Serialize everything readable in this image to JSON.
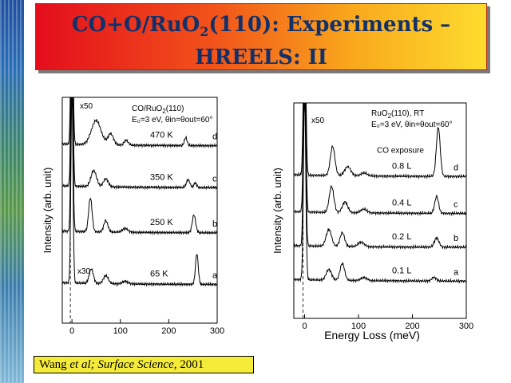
{
  "slide": {
    "title_formula": {
      "prefix": "CO+O/RuO",
      "sub": "2",
      "suffix": "(110): Experiments –"
    },
    "title_line2": "HREELS: II"
  },
  "citation": {
    "authors": "Wang",
    "etal": "et al;",
    "journal": "Surface Science,",
    "year": "2001"
  },
  "colors": {
    "title_text": "#12306a",
    "title_bg_left": "#e30d1c",
    "title_bg_right": "#fddc2e",
    "citation_bg": "#f5ec3a"
  },
  "chart_data": [
    {
      "type": "line",
      "title": "",
      "legend_text": {
        "system": "CO/RuO",
        "system_sub": "2",
        "system_tail": "(110)",
        "conditions": "E₀=3 eV, θin=θout=60°"
      },
      "xlabel": "",
      "ylabel": "Intensity (arb. unit)",
      "xlim": [
        -20,
        300
      ],
      "xticks": [
        0,
        100,
        200,
        300
      ],
      "multiplier_labels": [
        "x50",
        "x30"
      ],
      "series": [
        {
          "name": "65 K",
          "letter": "a",
          "baseline": 1.0,
          "peaks": [
            [
              0,
              6.0,
              3
            ],
            [
              40,
              0.45,
              6
            ],
            [
              70,
              0.25,
              7
            ],
            [
              110,
              0.08,
              8
            ],
            [
              258,
              0.95,
              4
            ]
          ]
        },
        {
          "name": "250 K",
          "letter": "b",
          "baseline": 2.6,
          "peaks": [
            [
              0,
              6.0,
              3
            ],
            [
              38,
              1.05,
              5
            ],
            [
              70,
              0.35,
              6
            ],
            [
              110,
              0.12,
              8
            ],
            [
              252,
              0.55,
              5
            ]
          ]
        },
        {
          "name": "350 K",
          "letter": "c",
          "baseline": 4.0,
          "peaks": [
            [
              0,
              6.0,
              3
            ],
            [
              45,
              0.5,
              8
            ],
            [
              70,
              0.25,
              7
            ],
            [
              240,
              0.25,
              5
            ],
            [
              255,
              0.15,
              4
            ]
          ]
        },
        {
          "name": "470 K",
          "letter": "d",
          "baseline": 5.3,
          "peaks": [
            [
              0,
              6.0,
              3
            ],
            [
              50,
              0.75,
              14
            ],
            [
              80,
              0.35,
              8
            ],
            [
              112,
              0.15,
              6
            ],
            [
              235,
              0.25,
              4
            ]
          ]
        }
      ]
    },
    {
      "type": "line",
      "title": "",
      "legend_text": {
        "system": "RuO",
        "system_sub": "2",
        "system_tail": "(110), RT",
        "conditions": "E₀=3 eV, θin=θout=60°"
      },
      "annotation": "CO exposure",
      "xlabel": "Energy Loss (meV)",
      "ylabel": "Intensity (arb. unit)",
      "xlim": [
        -20,
        300
      ],
      "xticks": [
        0,
        100,
        200,
        300
      ],
      "multiplier_labels": [
        "x50"
      ],
      "series": [
        {
          "name": "0.1 L",
          "letter": "a",
          "baseline": 1.0,
          "peaks": [
            [
              0,
              6.0,
              3
            ],
            [
              45,
              0.35,
              7
            ],
            [
              70,
              0.55,
              6
            ],
            [
              110,
              0.1,
              8
            ],
            [
              240,
              0.12,
              6
            ]
          ]
        },
        {
          "name": "0.2 L",
          "letter": "b",
          "baseline": 2.1,
          "peaks": [
            [
              0,
              6.0,
              3
            ],
            [
              45,
              0.55,
              7
            ],
            [
              70,
              0.45,
              6
            ],
            [
              105,
              0.15,
              8
            ],
            [
              245,
              0.3,
              6
            ]
          ]
        },
        {
          "name": "0.4 L",
          "letter": "c",
          "baseline": 3.2,
          "peaks": [
            [
              0,
              6.0,
              3
            ],
            [
              50,
              0.85,
              6
            ],
            [
              75,
              0.35,
              7
            ],
            [
              110,
              0.12,
              8
            ],
            [
              245,
              0.55,
              5
            ]
          ]
        },
        {
          "name": "0.8 L",
          "letter": "d",
          "baseline": 4.4,
          "peaks": [
            [
              0,
              6.0,
              3
            ],
            [
              52,
              0.95,
              6
            ],
            [
              80,
              0.3,
              8
            ],
            [
              110,
              0.1,
              8
            ],
            [
              248,
              1.6,
              5
            ]
          ]
        }
      ]
    }
  ]
}
